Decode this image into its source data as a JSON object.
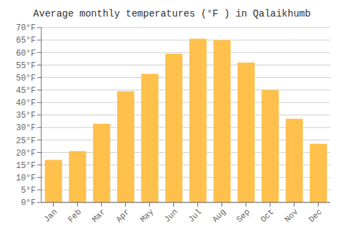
{
  "chart_data": {
    "type": "bar",
    "title": "Average monthly temperatures (°F ) in Qalaikhumb",
    "categories": [
      "Jan",
      "Feb",
      "Mar",
      "Apr",
      "May",
      "Jun",
      "Jul",
      "Aug",
      "Sep",
      "Oct",
      "Nov",
      "Dec"
    ],
    "values": [
      17,
      20.5,
      31.5,
      44.5,
      51.5,
      59.5,
      65.5,
      65,
      56,
      45,
      33.5,
      23.5
    ],
    "color": "#FFC04C",
    "ylim": [
      0,
      70
    ],
    "yticks": [
      {
        "value": 0,
        "label": "0°F"
      },
      {
        "value": 5,
        "label": "5°F"
      },
      {
        "value": 10,
        "label": "10°F"
      },
      {
        "value": 15,
        "label": "15°F"
      },
      {
        "value": 20,
        "label": "20°F"
      },
      {
        "value": 25,
        "label": "25°F"
      },
      {
        "value": 30,
        "label": "30°F"
      },
      {
        "value": 35,
        "label": "35°F"
      },
      {
        "value": 40,
        "label": "40°F"
      },
      {
        "value": 45,
        "label": "45°F"
      },
      {
        "value": 50,
        "label": "50°F"
      },
      {
        "value": 55,
        "label": "55°F"
      },
      {
        "value": 60,
        "label": "60°F"
      },
      {
        "value": 65,
        "label": "65°F"
      },
      {
        "value": 70,
        "label": "70°F"
      }
    ],
    "grid": true
  }
}
